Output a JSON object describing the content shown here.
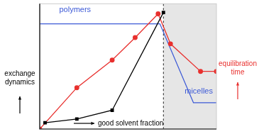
{
  "chart_data": {
    "type": "line",
    "x_label": "good solvent fraction",
    "y_label": "exchange dynamics",
    "y2_label": "equilibration time",
    "xlim": [
      0,
      100
    ],
    "ylim": [
      0,
      100
    ],
    "y2lim": [
      0,
      100
    ],
    "tick_labels": false,
    "grid": false,
    "series": [
      {
        "color": "#000000",
        "marker": "square",
        "x": [
          3,
          21,
          41,
          70
        ],
        "values": [
          5,
          8,
          15,
          93
        ]
      },
      {
        "color": "#e8302e",
        "marker": "circle",
        "axis": "y2",
        "x": [
          0,
          21,
          41,
          54,
          67,
          74,
          91,
          100
        ],
        "values": [
          0,
          33,
          55,
          73,
          92,
          68,
          46,
          46
        ]
      },
      {
        "color": "#3d5ad6",
        "marker": "none",
        "x": [
          0,
          68,
          87,
          100
        ],
        "values": [
          84,
          84,
          21,
          21
        ]
      }
    ],
    "vline": {
      "x": 70,
      "line_style": "dashed"
    },
    "shaded": {
      "x": [
        70,
        100
      ]
    },
    "annotations": [
      {
        "text": "polymers",
        "color": "#3d5ad6"
      },
      {
        "text": "micelles",
        "color": "#3d5ad6"
      }
    ]
  }
}
